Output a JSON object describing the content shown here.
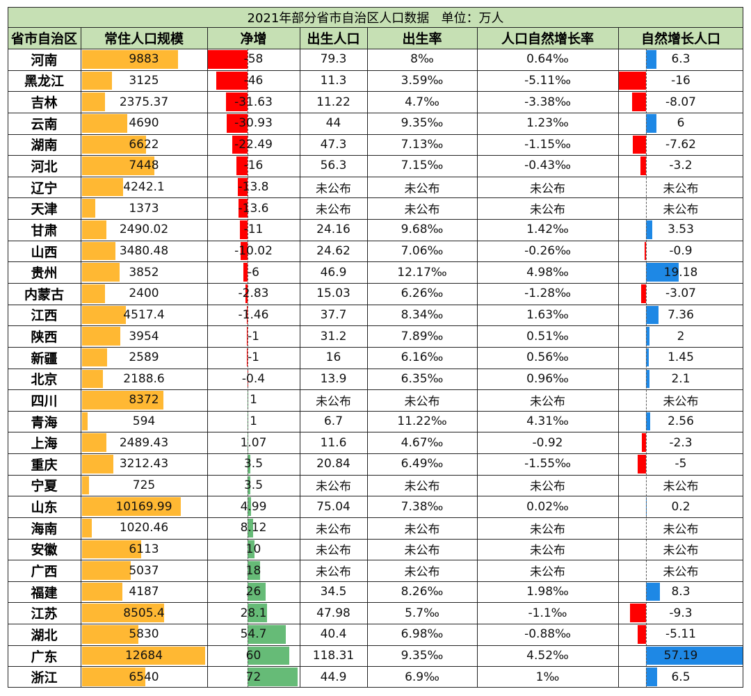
{
  "title": "2021年部分省市自治区人口数据",
  "unit": "单位：万人",
  "headers": [
    "省市自治区",
    "常住人口规模",
    "净增",
    "出生人口",
    "出生率",
    "人口自然增长率",
    "自然增长人口"
  ],
  "colors": {
    "header_bg": "#c6e0b4",
    "population_bar": "#ffb833",
    "net_negative": "#ff0000",
    "net_positive": "#66bb77",
    "natural_positive": "#1e88e5",
    "natural_negative": "#ff0000"
  },
  "chart_data": {
    "type": "table",
    "columns": [
      "省市自治区",
      "常住人口规模",
      "净增",
      "出生人口",
      "出生率",
      "人口自然增长率",
      "自然增长人口"
    ],
    "rows": [
      {
        "province": "河南",
        "population": "9883",
        "net": "-58",
        "births": "79.3",
        "birth_rate": "8‰",
        "growth_rate": "0.64‰",
        "natural": "6.3"
      },
      {
        "province": "黑龙江",
        "population": "3125",
        "net": "-46",
        "births": "11.3",
        "birth_rate": "3.59‰",
        "growth_rate": "-5.11‰",
        "natural": "-16"
      },
      {
        "province": "吉林",
        "population": "2375.37",
        "net": "-31.63",
        "births": "11.22",
        "birth_rate": "4.7‰",
        "growth_rate": "-3.38‰",
        "natural": "-8.07"
      },
      {
        "province": "云南",
        "population": "4690",
        "net": "-30.93",
        "births": "44",
        "birth_rate": "9.35‰",
        "growth_rate": "1.23‰",
        "natural": "6"
      },
      {
        "province": "湖南",
        "population": "6622",
        "net": "-22.49",
        "births": "47.3",
        "birth_rate": "7.13‰",
        "growth_rate": "-1.15‰",
        "natural": "-7.62"
      },
      {
        "province": "河北",
        "population": "7448",
        "net": "-16",
        "births": "56.3",
        "birth_rate": "7.15‰",
        "growth_rate": "-0.43‰",
        "natural": "-3.2"
      },
      {
        "province": "辽宁",
        "population": "4242.1",
        "net": "-13.8",
        "births": "未公布",
        "birth_rate": "未公布",
        "growth_rate": "未公布",
        "natural": "未公布"
      },
      {
        "province": "天津",
        "population": "1373",
        "net": "-13.6",
        "births": "未公布",
        "birth_rate": "未公布",
        "growth_rate": "未公布",
        "natural": "未公布"
      },
      {
        "province": "甘肃",
        "population": "2490.02",
        "net": "-11",
        "births": "24.16",
        "birth_rate": "9.68‰",
        "growth_rate": "1.42‰",
        "natural": "3.53"
      },
      {
        "province": "山西",
        "population": "3480.48",
        "net": "-10.02",
        "births": "24.62",
        "birth_rate": "7.06‰",
        "growth_rate": "-0.26‰",
        "natural": "-0.9"
      },
      {
        "province": "贵州",
        "population": "3852",
        "net": "-6",
        "births": "46.9",
        "birth_rate": "12.17‰",
        "growth_rate": "4.98‰",
        "natural": "19.18"
      },
      {
        "province": "内蒙古",
        "population": "2400",
        "net": "-2.83",
        "births": "15.03",
        "birth_rate": "6.26‰",
        "growth_rate": "-1.28‰",
        "natural": "-3.07"
      },
      {
        "province": "江西",
        "population": "4517.4",
        "net": "-1.46",
        "births": "37.7",
        "birth_rate": "8.34‰",
        "growth_rate": "1.63‰",
        "natural": "7.36"
      },
      {
        "province": "陕西",
        "population": "3954",
        "net": "-1",
        "births": "31.2",
        "birth_rate": "7.89‰",
        "growth_rate": "0.51‰",
        "natural": "2"
      },
      {
        "province": "新疆",
        "population": "2589",
        "net": "-1",
        "births": "16",
        "birth_rate": "6.16‰",
        "growth_rate": "0.56‰",
        "natural": "1.45"
      },
      {
        "province": "北京",
        "population": "2188.6",
        "net": "-0.4",
        "births": "13.9",
        "birth_rate": "6.35‰",
        "growth_rate": "0.96‰",
        "natural": "2.1"
      },
      {
        "province": "四川",
        "population": "8372",
        "net": "1",
        "births": "未公布",
        "birth_rate": "未公布",
        "growth_rate": "未公布",
        "natural": "未公布"
      },
      {
        "province": "青海",
        "population": "594",
        "net": "1",
        "births": "6.7",
        "birth_rate": "11.22‰",
        "growth_rate": "4.31‰",
        "natural": "2.56"
      },
      {
        "province": "上海",
        "population": "2489.43",
        "net": "1.07",
        "births": "11.6",
        "birth_rate": "4.67‰",
        "growth_rate": "-0.92",
        "natural": "-2.3"
      },
      {
        "province": "重庆",
        "population": "3212.43",
        "net": "3.5",
        "births": "20.84",
        "birth_rate": "6.49‰",
        "growth_rate": "-1.55‰",
        "natural": "-5"
      },
      {
        "province": "宁夏",
        "population": "725",
        "net": "3.5",
        "births": "未公布",
        "birth_rate": "未公布",
        "growth_rate": "未公布",
        "natural": "未公布"
      },
      {
        "province": "山东",
        "population": "10169.99",
        "net": "4.99",
        "births": "75.04",
        "birth_rate": "7.38‰",
        "growth_rate": "0.02‰",
        "natural": "0.2"
      },
      {
        "province": "海南",
        "population": "1020.46",
        "net": "8.12",
        "births": "未公布",
        "birth_rate": "未公布",
        "growth_rate": "未公布",
        "natural": "未公布"
      },
      {
        "province": "安徽",
        "population": "6113",
        "net": "10",
        "births": "未公布",
        "birth_rate": "未公布",
        "growth_rate": "未公布",
        "natural": "未公布"
      },
      {
        "province": "广西",
        "population": "5037",
        "net": "18",
        "births": "未公布",
        "birth_rate": "未公布",
        "growth_rate": "未公布",
        "natural": "未公布"
      },
      {
        "province": "福建",
        "population": "4187",
        "net": "26",
        "births": "34.5",
        "birth_rate": "8.26‰",
        "growth_rate": "1.98‰",
        "natural": "8.3"
      },
      {
        "province": "江苏",
        "population": "8505.4",
        "net": "28.1",
        "births": "47.98",
        "birth_rate": "5.7‰",
        "growth_rate": "-1.1‰",
        "natural": "-9.3"
      },
      {
        "province": "湖北",
        "population": "5830",
        "net": "54.7",
        "births": "40.4",
        "birth_rate": "6.98‰",
        "growth_rate": "-0.88‰",
        "natural": "-5.11"
      },
      {
        "province": "广东",
        "population": "12684",
        "net": "60",
        "births": "118.31",
        "birth_rate": "9.35‰",
        "growth_rate": "4.52‰",
        "natural": "57.19"
      },
      {
        "province": "浙江",
        "population": "6540",
        "net": "72",
        "births": "44.9",
        "birth_rate": "6.9‰",
        "growth_rate": "1‰",
        "natural": "6.5"
      }
    ]
  }
}
